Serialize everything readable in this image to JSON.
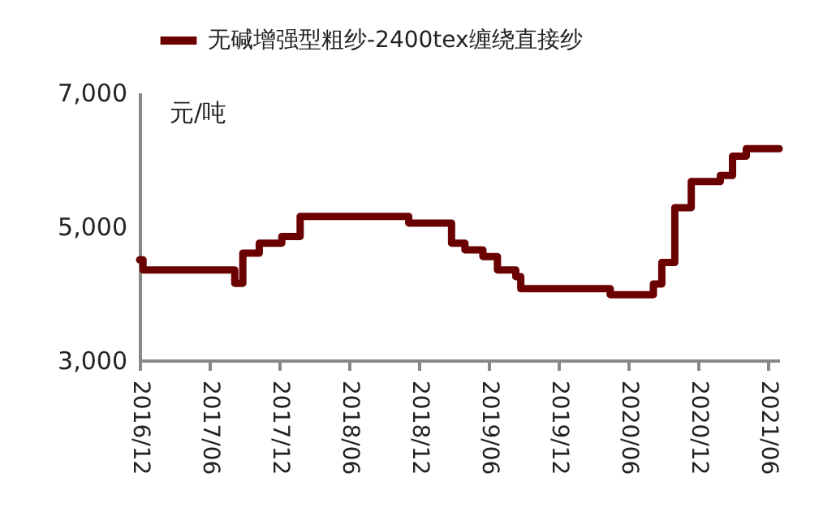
{
  "chart_data": {
    "type": "step",
    "ylabel": "元/吨",
    "x": [
      "2016-12-01",
      "2016-12-10",
      "2017-08-07",
      "2017-08-28",
      "2017-10-10",
      "2017-12-08",
      "2018-01-25",
      "2018-11-05",
      "2019-02-25",
      "2019-04-01",
      "2019-05-18",
      "2019-06-25",
      "2019-08-12",
      "2019-08-25",
      "2020-04-15",
      "2020-08-06",
      "2020-08-28",
      "2020-10-01",
      "2020-11-13",
      "2021-01-28",
      "2021-03-01",
      "2021-04-06",
      "2021-07-01"
    ],
    "series": [
      {
        "name": "无碱增强型粗纱-2400tex缠绕直接纱",
        "color": "#6b0000",
        "values": [
          4500,
          4350,
          4150,
          4600,
          4750,
          4850,
          5150,
          5050,
          4750,
          4650,
          4550,
          4350,
          4250,
          4070,
          3980,
          4140,
          4460,
          5280,
          5670,
          5760,
          6050,
          6160,
          6160
        ]
      }
    ],
    "xlim": [
      "2016-12-01",
      "2021-07-01"
    ],
    "xticks": [
      {
        "value": "2016-12-01",
        "label": "2016/12"
      },
      {
        "value": "2017-06-01",
        "label": "2017/06"
      },
      {
        "value": "2017-12-01",
        "label": "2017/12"
      },
      {
        "value": "2018-06-01",
        "label": "2018/06"
      },
      {
        "value": "2018-12-01",
        "label": "2018/12"
      },
      {
        "value": "2019-06-01",
        "label": "2019/06"
      },
      {
        "value": "2019-12-01",
        "label": "2019/12"
      },
      {
        "value": "2020-06-01",
        "label": "2020/06"
      },
      {
        "value": "2020-12-01",
        "label": "2020/12"
      },
      {
        "value": "2021-06-01",
        "label": "2021/06"
      }
    ],
    "ylim": [
      3000,
      7000
    ],
    "yticks": [
      {
        "value": 3000,
        "label": "3,000"
      },
      {
        "value": 5000,
        "label": "5,000"
      },
      {
        "value": 7000,
        "label": "7,000"
      }
    ],
    "legend": "top",
    "grid": false
  }
}
